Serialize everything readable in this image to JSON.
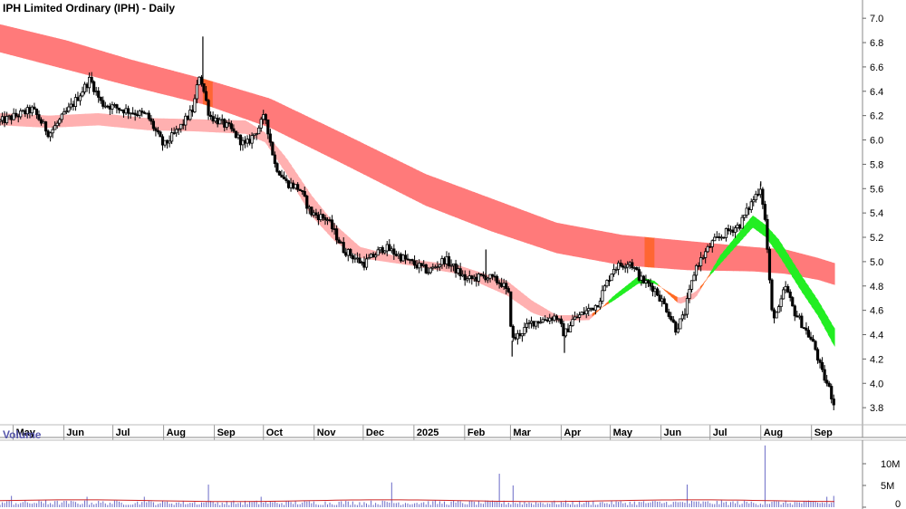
{
  "chart_data": {
    "type": "candlestick",
    "title": "IPH Limited Ordinary (IPH) - Daily",
    "price_axis": {
      "ylim": [
        3.6,
        7.15
      ],
      "ticks": [
        "7.0",
        "6.8",
        "6.6",
        "6.4",
        "6.2",
        "6.0",
        "5.8",
        "5.6",
        "5.4",
        "5.2",
        "5.0",
        "4.8",
        "4.6",
        "4.4",
        "4.2",
        "4.0",
        "3.8"
      ]
    },
    "months": [
      {
        "label": "May",
        "day": 8
      },
      {
        "label": "Jun",
        "day": 39
      },
      {
        "label": "Jul",
        "day": 69
      },
      {
        "label": "Aug",
        "day": 100
      },
      {
        "label": "Sep",
        "day": 131
      },
      {
        "label": "Oct",
        "day": 161
      },
      {
        "label": "Nov",
        "day": 192
      },
      {
        "label": "Dec",
        "day": 222
      },
      {
        "label": "2025",
        "day": 253
      },
      {
        "label": "Feb",
        "day": 284
      },
      {
        "label": "Mar",
        "day": 312
      },
      {
        "label": "Apr",
        "day": 343
      },
      {
        "label": "May",
        "day": 373
      },
      {
        "label": "Jun",
        "day": 404
      },
      {
        "label": "Jul",
        "day": 434
      },
      {
        "label": "Aug",
        "day": 465
      },
      {
        "label": "Sep",
        "day": 496
      }
    ],
    "price_path": [
      [
        0,
        6.15
      ],
      [
        20,
        6.25
      ],
      [
        30,
        6.05
      ],
      [
        45,
        6.3
      ],
      [
        55,
        6.5
      ],
      [
        62,
        6.3
      ],
      [
        75,
        6.25
      ],
      [
        90,
        6.2
      ],
      [
        100,
        5.95
      ],
      [
        110,
        6.1
      ],
      [
        118,
        6.25
      ],
      [
        122,
        6.55
      ],
      [
        128,
        6.2
      ],
      [
        140,
        6.1
      ],
      [
        150,
        5.95
      ],
      [
        158,
        6.1
      ],
      [
        162,
        6.2
      ],
      [
        168,
        5.8
      ],
      [
        175,
        5.65
      ],
      [
        183,
        5.6
      ],
      [
        190,
        5.4
      ],
      [
        200,
        5.35
      ],
      [
        210,
        5.1
      ],
      [
        222,
        4.98
      ],
      [
        235,
        5.12
      ],
      [
        250,
        5.0
      ],
      [
        262,
        4.92
      ],
      [
        272,
        5.02
      ],
      [
        285,
        4.85
      ],
      [
        297,
        4.88
      ],
      [
        307,
        4.82
      ],
      [
        311,
        4.72
      ],
      [
        313,
        4.35
      ],
      [
        325,
        4.5
      ],
      [
        340,
        4.55
      ],
      [
        345,
        4.4
      ],
      [
        350,
        4.52
      ],
      [
        365,
        4.65
      ],
      [
        375,
        4.95
      ],
      [
        385,
        5.0
      ],
      [
        392,
        4.85
      ],
      [
        400,
        4.78
      ],
      [
        408,
        4.6
      ],
      [
        413,
        4.45
      ],
      [
        418,
        4.55
      ],
      [
        425,
        4.95
      ],
      [
        435,
        5.15
      ],
      [
        445,
        5.25
      ],
      [
        452,
        5.3
      ],
      [
        460,
        5.5
      ],
      [
        465,
        5.62
      ],
      [
        468,
        5.3
      ],
      [
        470,
        4.9
      ],
      [
        472,
        4.55
      ],
      [
        476,
        4.6
      ],
      [
        480,
        4.8
      ],
      [
        485,
        4.6
      ],
      [
        492,
        4.45
      ],
      [
        498,
        4.3
      ],
      [
        502,
        4.1
      ],
      [
        507,
        3.95
      ],
      [
        510,
        3.82
      ]
    ],
    "wicks": [
      [
        124,
        6.85
      ],
      [
        297,
        5.1
      ],
      [
        313,
        4.22
      ],
      [
        345,
        4.25
      ],
      [
        465,
        5.66
      ]
    ],
    "band_upper": [
      [
        0,
        6.95,
        6.72
      ],
      [
        40,
        6.82,
        6.58
      ],
      [
        80,
        6.66,
        6.44
      ],
      [
        125,
        6.5,
        6.29
      ],
      [
        165,
        6.34,
        6.1
      ],
      [
        210,
        6.05,
        5.8
      ],
      [
        260,
        5.72,
        5.46
      ],
      [
        300,
        5.52,
        5.25
      ],
      [
        340,
        5.32,
        5.07
      ],
      [
        380,
        5.22,
        4.97
      ],
      [
        420,
        5.17,
        4.93
      ],
      [
        460,
        5.12,
        4.92
      ],
      [
        480,
        5.1,
        4.9
      ],
      [
        500,
        5.03,
        4.85
      ],
      [
        512,
        4.98,
        4.8
      ]
    ],
    "band_lower": [
      [
        0,
        6.22,
        6.12
      ],
      [
        30,
        6.2,
        6.1
      ],
      [
        60,
        6.22,
        6.12
      ],
      [
        90,
        6.18,
        6.08
      ],
      [
        120,
        6.17,
        6.07
      ],
      [
        150,
        6.16,
        6.05
      ],
      [
        162,
        6.06,
        5.98
      ],
      [
        175,
        5.85,
        5.72
      ],
      [
        190,
        5.55,
        5.38
      ],
      [
        205,
        5.3,
        5.16
      ],
      [
        220,
        5.12,
        5.03
      ],
      [
        250,
        5.02,
        4.97
      ],
      [
        280,
        4.97,
        4.9
      ],
      [
        310,
        4.84,
        4.72
      ],
      [
        325,
        4.68,
        4.58
      ],
      [
        340,
        4.56,
        4.51
      ],
      [
        360,
        4.56,
        4.52
      ],
      [
        375,
        4.68,
        4.72
      ],
      [
        390,
        4.82,
        4.88
      ],
      [
        400,
        4.82,
        4.84
      ],
      [
        415,
        4.7,
        4.65
      ],
      [
        425,
        4.75,
        4.7
      ],
      [
        440,
        4.98,
        5.05
      ],
      [
        460,
        5.28,
        5.38
      ],
      [
        468,
        5.2,
        5.3
      ],
      [
        476,
        5.05,
        5.18
      ],
      [
        490,
        4.75,
        4.88
      ],
      [
        500,
        4.55,
        4.68
      ],
      [
        510,
        4.3,
        4.45
      ]
    ],
    "band_upper_overlaps": [
      [
        123,
        129
      ],
      [
        393,
        400
      ]
    ],
    "volume_axis": {
      "ylim": [
        0,
        15
      ],
      "ticks": [
        "10M",
        "5M",
        "0"
      ]
    },
    "volume": {
      "base": 1.2,
      "avg": 1.5,
      "spikes": [
        [
          7,
          2.6
        ],
        [
          28,
          1.6
        ],
        [
          53,
          2.4
        ],
        [
          88,
          2.4
        ],
        [
          128,
          5.2
        ],
        [
          160,
          2.4
        ],
        [
          240,
          5.7
        ],
        [
          305,
          7.7
        ],
        [
          313,
          5.0
        ],
        [
          420,
          5.2
        ],
        [
          468,
          14.2
        ],
        [
          505,
          2.4
        ],
        [
          510,
          2.6
        ]
      ]
    }
  }
}
